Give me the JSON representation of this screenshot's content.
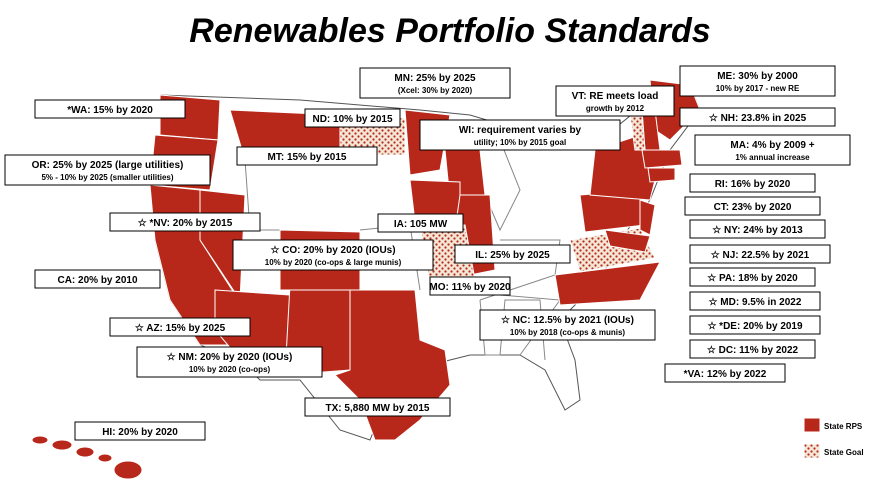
{
  "title": "Renewables Portfolio Standards",
  "labels": [
    {
      "text": "MN: 25% by 2025",
      "subtext": "(Xcel: 30% by 2020)"
    },
    {
      "text": "ME: 30% by 2000",
      "subtext": "10% by 2017 - new RE"
    },
    {
      "text": "VT: RE meets load",
      "subtext": "growth by 2012"
    },
    {
      "text": "*WA: 15% by 2020"
    },
    {
      "text": "ND: 10% by 2015"
    },
    {
      "text": "WI: requirement varies by",
      "subtext": "utility; 10% by 2015 goal"
    },
    {
      "text": "☆ NH: 23.8% in 2025"
    },
    {
      "text": "MA: 4% by 2009 +",
      "subtext": "1% annual increase"
    },
    {
      "text": "OR: 25% by 2025 (large utilities)",
      "subtext": "5% - 10% by 2025 (smaller utilities)"
    },
    {
      "text": "MT: 15% by 2015"
    },
    {
      "text": "RI: 16% by 2020"
    },
    {
      "text": "CT: 23% by 2020"
    },
    {
      "text": "☆ *NV: 20% by 2015"
    },
    {
      "text": "IA: 105 MW"
    },
    {
      "text": "☆ NY: 24% by 2013"
    },
    {
      "text": "☆ CO: 20% by 2020 (IOUs)",
      "subtext": "10% by 2020 (co-ops & large munis)"
    },
    {
      "text": "IL: 25% by 2025"
    },
    {
      "text": "☆ NJ: 22.5% by 2021"
    },
    {
      "text": "CA: 20% by 2010"
    },
    {
      "text": "MO: 11% by 2020"
    },
    {
      "text": "☆ PA: 18% by 2020"
    },
    {
      "text": "☆ MD: 9.5% in 2022"
    },
    {
      "text": "☆ AZ: 15% by 2025"
    },
    {
      "text": "☆ NC: 12.5% by 2021 (IOUs)",
      "subtext": "10% by 2018 (co-ops & munis)"
    },
    {
      "text": "☆ *DE: 20% by 2019"
    },
    {
      "text": "☆ NM: 20% by 2020 (IOUs)",
      "subtext": "10% by 2020 (co-ops)"
    },
    {
      "text": "☆ DC: 11% by 2022"
    },
    {
      "text": "*VA: 12% by 2022"
    },
    {
      "text": "TX: 5,880 MW by 2015"
    },
    {
      "text": "HI: 20% by 2020"
    }
  ],
  "legend": [
    "State RPS",
    "State Goal"
  ]
}
